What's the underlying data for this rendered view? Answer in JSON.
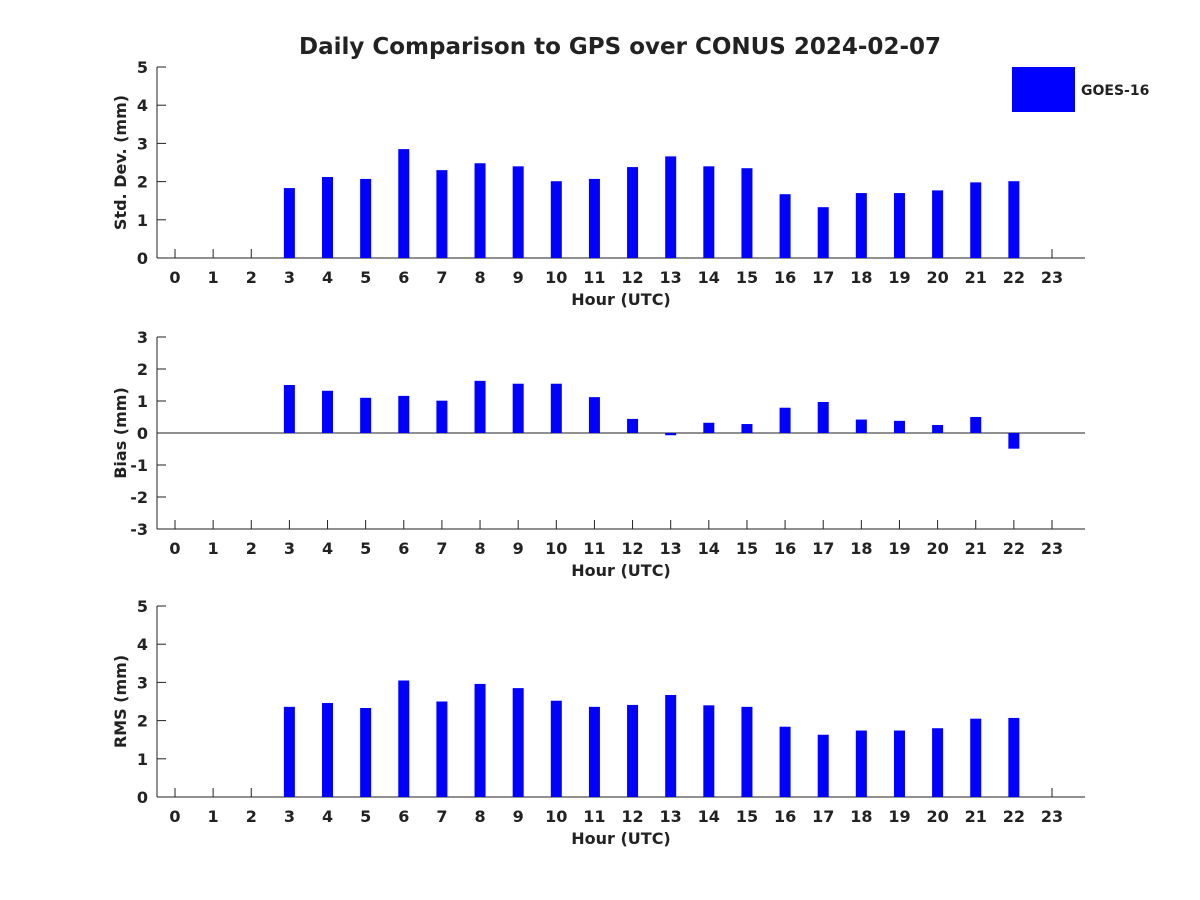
{
  "figure": {
    "title": "Daily Comparison to GPS over CONUS 2024-02-07",
    "legend": {
      "label": "GOES-16",
      "color": "#0000ff",
      "placement": "top-right"
    }
  },
  "chart_data": [
    {
      "type": "bar",
      "ylabel": "Std. Dev. (mm)",
      "xlabel": "Hour (UTC)",
      "ylim": [
        0,
        5
      ],
      "yticks": [
        0,
        1,
        2,
        3,
        4,
        5
      ],
      "categories": [
        "0",
        "1",
        "2",
        "3",
        "4",
        "5",
        "6",
        "7",
        "8",
        "9",
        "10",
        "11",
        "12",
        "13",
        "14",
        "15",
        "16",
        "17",
        "18",
        "19",
        "20",
        "21",
        "22",
        "23"
      ],
      "series": [
        {
          "name": "GOES-16",
          "color": "#0000ff",
          "values": [
            null,
            null,
            null,
            1.83,
            2.12,
            2.07,
            2.85,
            2.3,
            2.48,
            2.4,
            2.01,
            2.07,
            2.38,
            2.66,
            2.4,
            2.35,
            1.67,
            1.33,
            1.7,
            1.7,
            1.77,
            1.98,
            2.01,
            null
          ]
        }
      ]
    },
    {
      "type": "bar",
      "ylabel": "Bias (mm)",
      "xlabel": "Hour (UTC)",
      "ylim": [
        -3,
        3
      ],
      "yticks": [
        -3,
        -2,
        -1,
        0,
        1,
        2,
        3
      ],
      "zero_line": true,
      "categories": [
        "0",
        "1",
        "2",
        "3",
        "4",
        "5",
        "6",
        "7",
        "8",
        "9",
        "10",
        "11",
        "12",
        "13",
        "14",
        "15",
        "16",
        "17",
        "18",
        "19",
        "20",
        "21",
        "22",
        "23"
      ],
      "series": [
        {
          "name": "GOES-16",
          "color": "#0000ff",
          "values": [
            null,
            null,
            null,
            1.5,
            1.32,
            1.1,
            1.16,
            1.01,
            1.63,
            1.54,
            1.54,
            1.12,
            0.44,
            -0.07,
            0.32,
            0.28,
            0.79,
            0.97,
            0.42,
            0.38,
            0.25,
            0.5,
            -0.49,
            null
          ]
        }
      ]
    },
    {
      "type": "bar",
      "ylabel": "RMS (mm)",
      "xlabel": "Hour (UTC)",
      "ylim": [
        0,
        5
      ],
      "yticks": [
        0,
        1,
        2,
        3,
        4,
        5
      ],
      "categories": [
        "0",
        "1",
        "2",
        "3",
        "4",
        "5",
        "6",
        "7",
        "8",
        "9",
        "10",
        "11",
        "12",
        "13",
        "14",
        "15",
        "16",
        "17",
        "18",
        "19",
        "20",
        "21",
        "22",
        "23"
      ],
      "series": [
        {
          "name": "GOES-16",
          "color": "#0000ff",
          "values": [
            null,
            null,
            null,
            2.36,
            2.46,
            2.33,
            3.05,
            2.5,
            2.96,
            2.85,
            2.52,
            2.36,
            2.41,
            2.67,
            2.4,
            2.36,
            1.84,
            1.63,
            1.74,
            1.74,
            1.8,
            2.05,
            2.07,
            null
          ]
        }
      ]
    }
  ]
}
